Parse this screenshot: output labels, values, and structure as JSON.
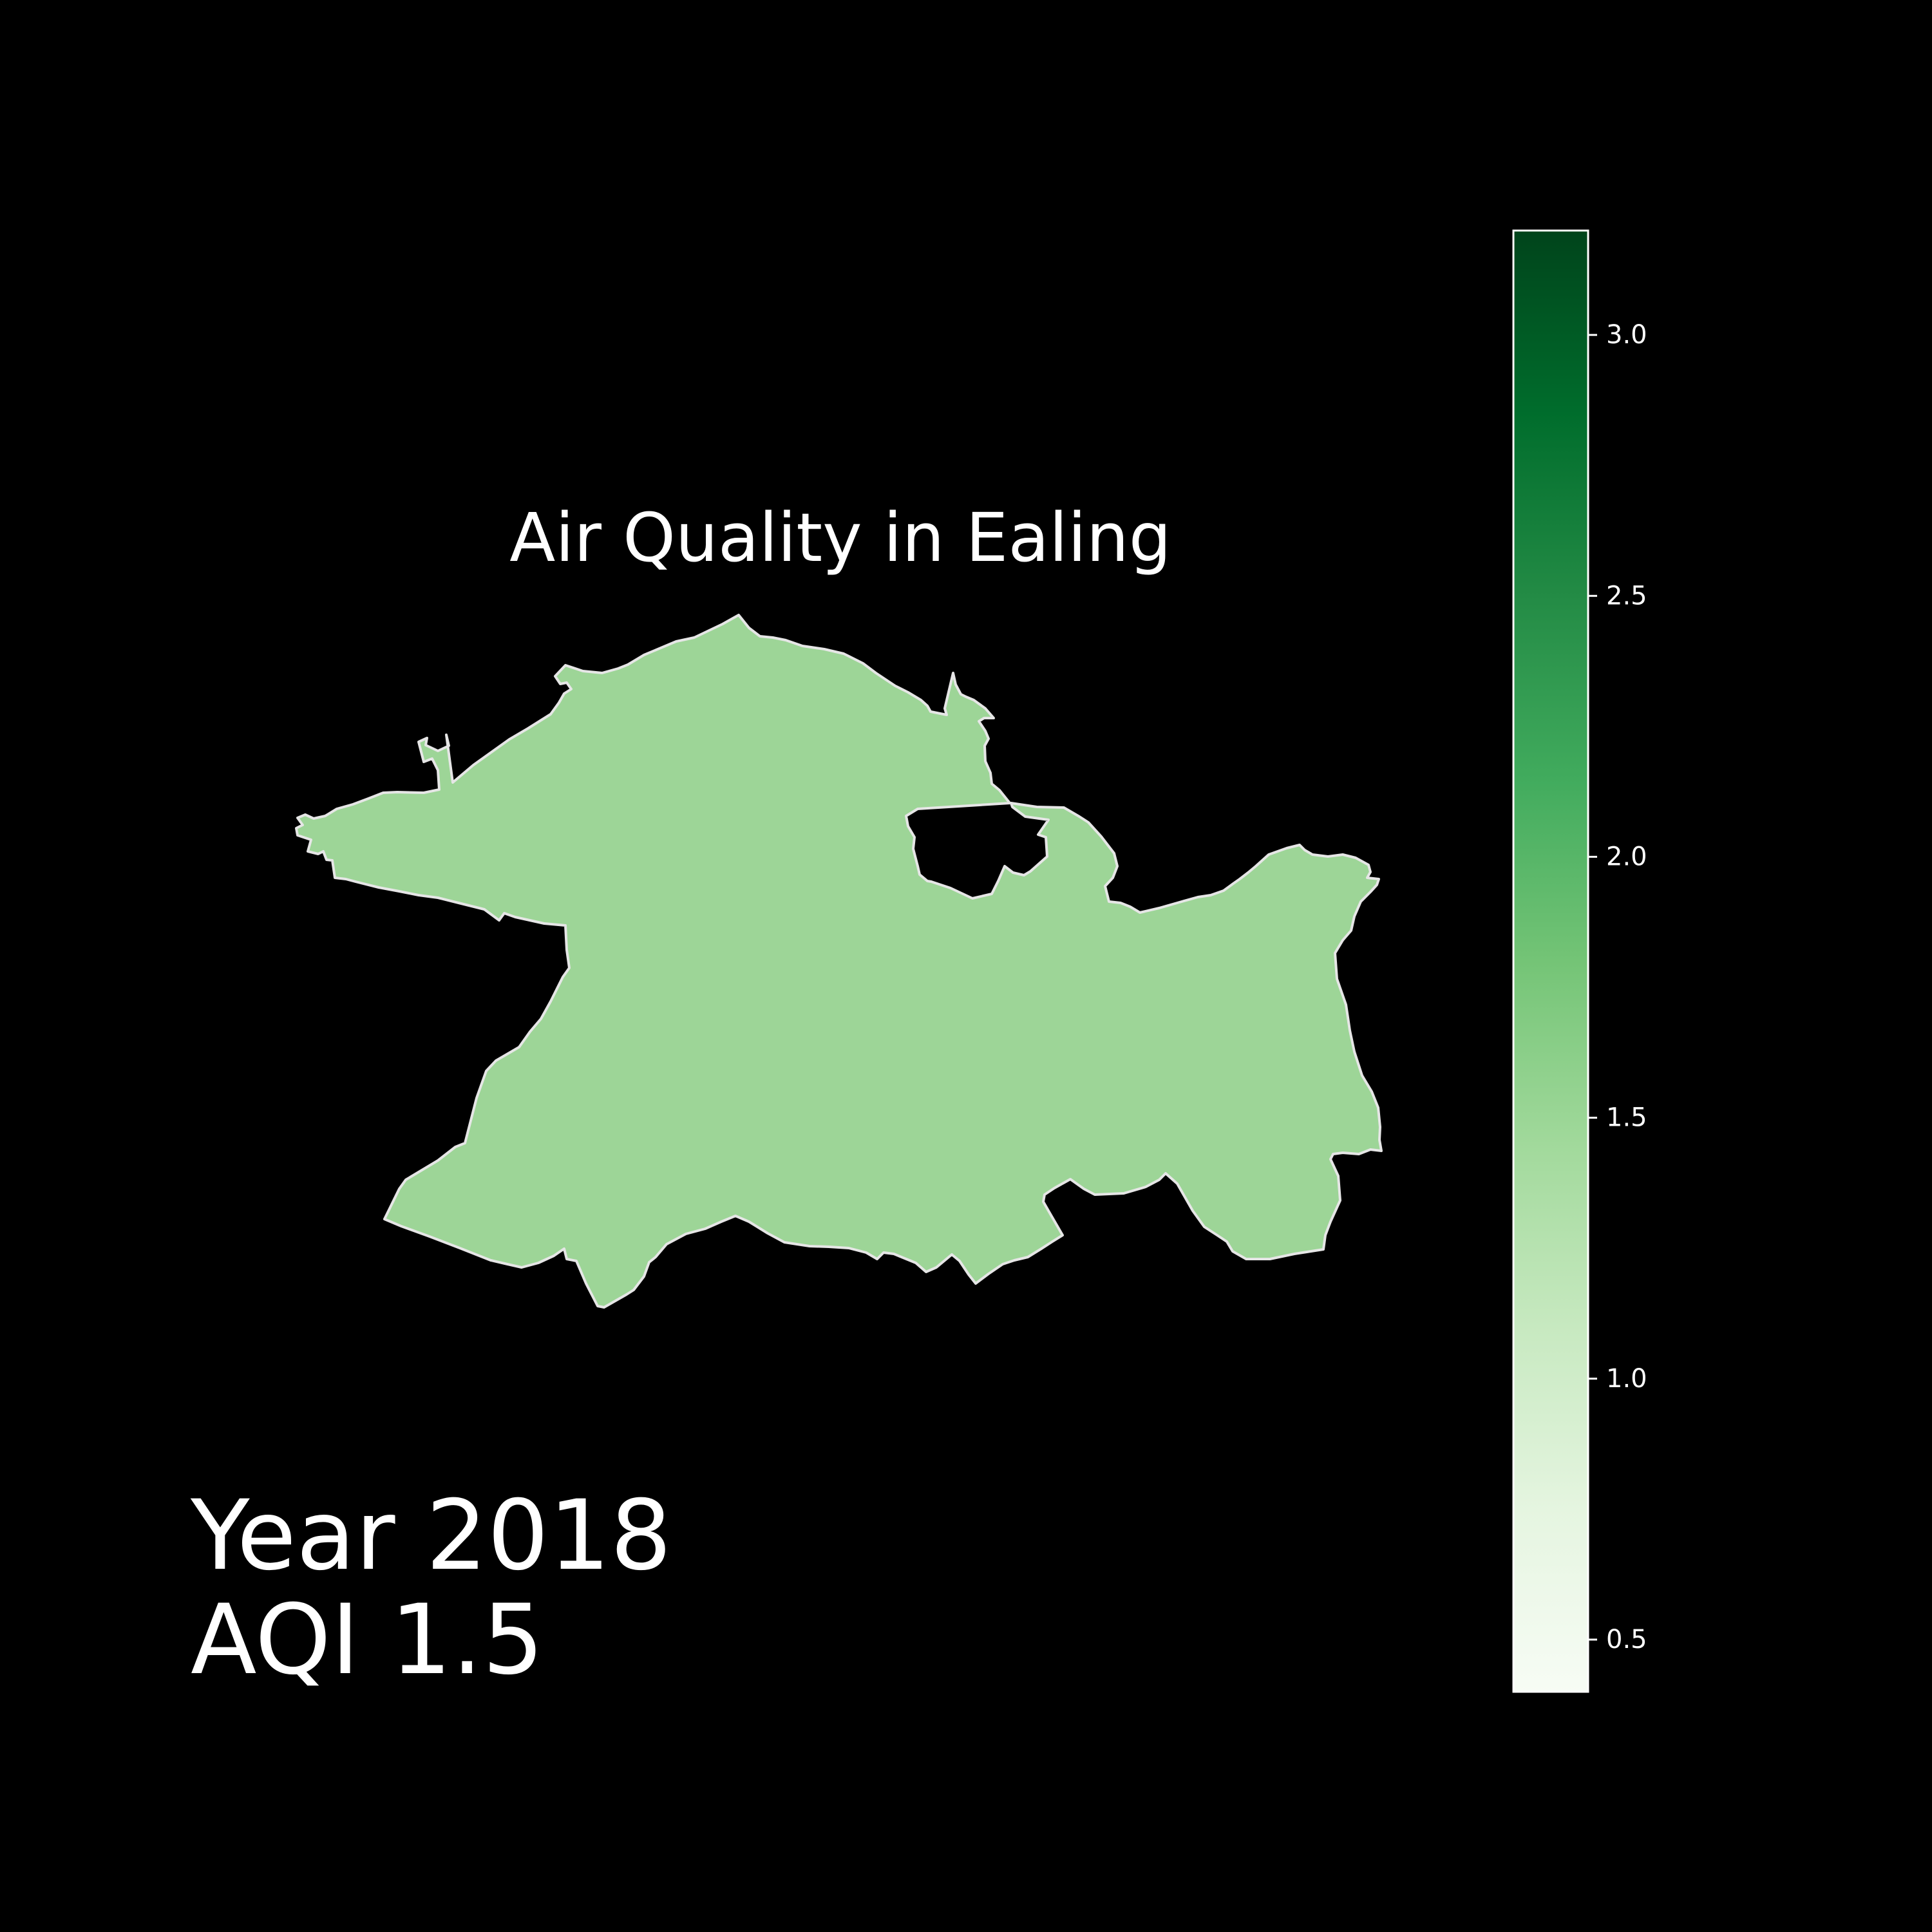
{
  "title": "Air Quality in Ealing",
  "annotation": {
    "year_text": "Year 2018",
    "aqi_text": "AQI 1.5"
  },
  "region": {
    "name": "Ealing",
    "year": 2018,
    "aqi": 1.5,
    "fill_color": "#9dd597",
    "outline_color": "#e6e6e6"
  },
  "colorbar": {
    "colormap": "Greens",
    "range": [
      0.4,
      3.2
    ],
    "ticks": [
      0.5,
      1.0,
      1.5,
      2.0,
      2.5,
      3.0
    ],
    "tick_labels": [
      "0.5",
      "1.0",
      "1.5",
      "2.0",
      "2.5",
      "3.0"
    ],
    "stops": [
      "#f7fcf5",
      "#e5f5e0",
      "#c7e9c0",
      "#a1d99b",
      "#74c476",
      "#41ab5d",
      "#238b45",
      "#006d2c",
      "#00441b"
    ]
  },
  "background_color": "#000000"
}
